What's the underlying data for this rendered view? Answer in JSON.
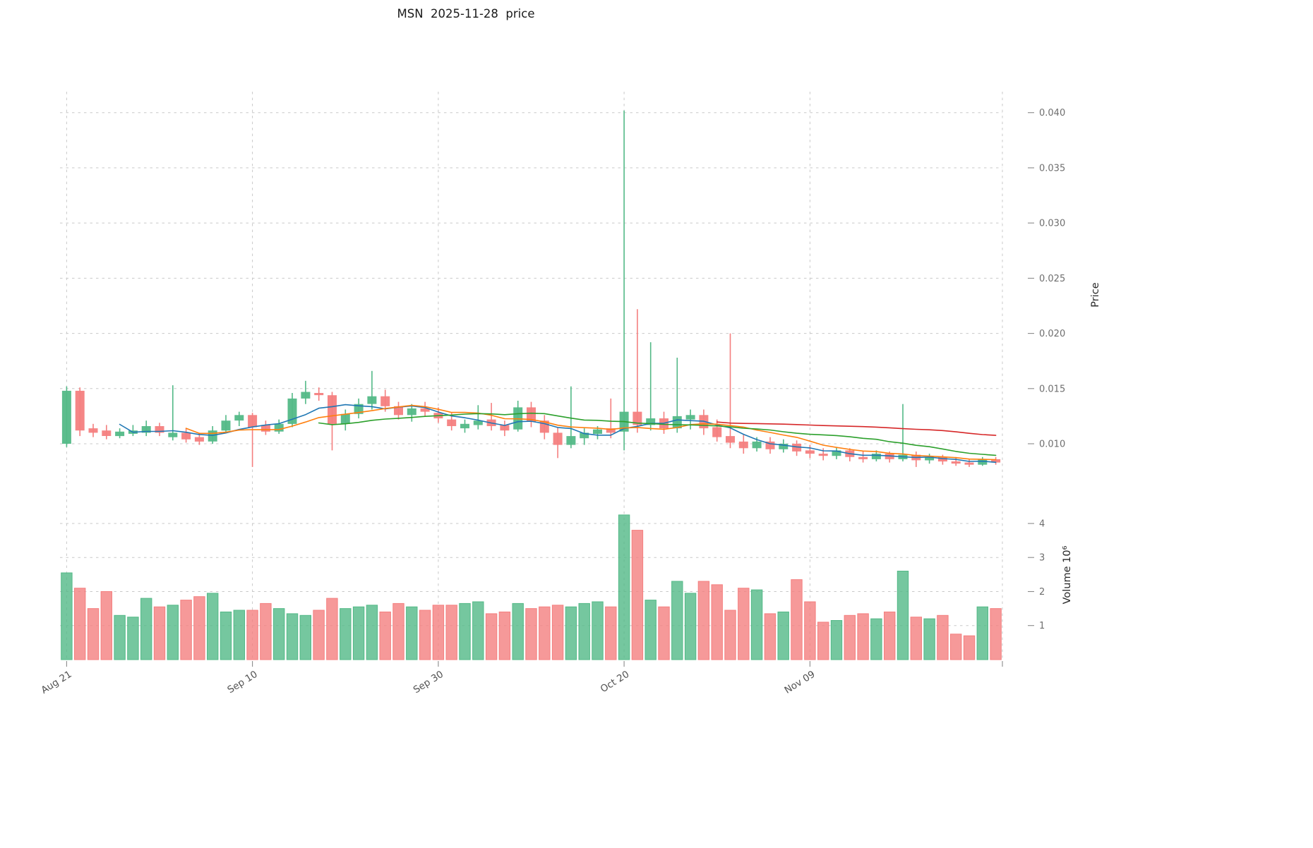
{
  "title": "MSN  2025-11-28  price",
  "chart_data": {
    "type": "candlestick+volume",
    "title": "MSN  2025-11-28  price",
    "ylabel": "Price",
    "ylabel_volume": "Volume 10⁶",
    "xlabel": "",
    "grid": "dashed",
    "legend": "none",
    "price_ticks": [
      0.01,
      0.015,
      0.02,
      0.025,
      0.03,
      0.035,
      0.04
    ],
    "volume_ticks": [
      1,
      2,
      3,
      4
    ],
    "price_ylim": [
      0.00674,
      0.0419
    ],
    "volume_ylim": [
      0,
      4.87
    ],
    "x_tick_labels": [
      "Aug 21",
      "Sep 10",
      "Sep 30",
      "Oct 20",
      "Nov 09"
    ],
    "x_tick_indices": [
      0,
      14,
      28,
      42,
      56
    ],
    "colors": {
      "up": "#53b987",
      "down": "#f47f7f",
      "grid": "#c9c9c9",
      "ma_blue": "#1f77b4",
      "ma_orange": "#ff7f0e",
      "ma_green": "#2ca02c",
      "ma_red": "#d62728"
    },
    "moving_averages": [
      {
        "name": "MA5",
        "period": 5,
        "color": "#1f77b4"
      },
      {
        "name": "MA10",
        "period": 10,
        "color": "#ff7f0e"
      },
      {
        "name": "MA20",
        "period": 20,
        "color": "#2ca02c"
      },
      {
        "name": "MA50",
        "period": 50,
        "color": "#d62728"
      }
    ],
    "candles_format": [
      "date",
      "open",
      "high",
      "low",
      "close",
      "volume_millions"
    ],
    "candles": [
      [
        "2025-08-21",
        0.01,
        0.0152,
        0.0097,
        0.0148,
        2.55
      ],
      [
        "2025-08-22",
        0.0148,
        0.0151,
        0.0107,
        0.0112,
        2.1
      ],
      [
        "2025-08-25",
        0.0114,
        0.0118,
        0.0106,
        0.011,
        1.5
      ],
      [
        "2025-08-26",
        0.0112,
        0.0117,
        0.0104,
        0.0107,
        2.0
      ],
      [
        "2025-08-27",
        0.0107,
        0.0114,
        0.0105,
        0.0111,
        1.3
      ],
      [
        "2025-08-28",
        0.0109,
        0.0117,
        0.0107,
        0.0112,
        1.25
      ],
      [
        "2025-08-29",
        0.011,
        0.0121,
        0.0107,
        0.0116,
        1.8
      ],
      [
        "2025-09-01",
        0.0116,
        0.0119,
        0.0107,
        0.011,
        1.55
      ],
      [
        "2025-09-02",
        0.0106,
        0.0153,
        0.0103,
        0.011,
        1.6
      ],
      [
        "2025-09-03",
        0.011,
        0.0114,
        0.0101,
        0.0104,
        1.75
      ],
      [
        "2025-09-04",
        0.0106,
        0.011,
        0.0099,
        0.0102,
        1.85
      ],
      [
        "2025-09-05",
        0.0102,
        0.0116,
        0.01,
        0.0112,
        1.95
      ],
      [
        "2025-09-08",
        0.0112,
        0.0126,
        0.011,
        0.0121,
        1.4
      ],
      [
        "2025-09-09",
        0.0121,
        0.0129,
        0.0116,
        0.0126,
        1.45
      ],
      [
        "2025-09-10",
        0.0126,
        0.0128,
        0.0079,
        0.0115,
        1.45
      ],
      [
        "2025-09-11",
        0.0117,
        0.0121,
        0.0108,
        0.0111,
        1.65
      ],
      [
        "2025-09-12",
        0.0111,
        0.0122,
        0.0109,
        0.0118,
        1.5
      ],
      [
        "2025-09-15",
        0.0118,
        0.0146,
        0.0115,
        0.0141,
        1.35
      ],
      [
        "2025-09-16",
        0.0141,
        0.0157,
        0.0136,
        0.0147,
        1.3
      ],
      [
        "2025-09-17",
        0.0146,
        0.0151,
        0.0139,
        0.0144,
        1.45
      ],
      [
        "2025-09-18",
        0.0144,
        0.0147,
        0.0094,
        0.0118,
        1.8
      ],
      [
        "2025-09-19",
        0.0118,
        0.0131,
        0.0112,
        0.0127,
        1.5
      ],
      [
        "2025-09-22",
        0.0127,
        0.0141,
        0.0123,
        0.0136,
        1.55
      ],
      [
        "2025-09-23",
        0.0136,
        0.0166,
        0.0131,
        0.0143,
        1.6
      ],
      [
        "2025-09-24",
        0.0143,
        0.0149,
        0.0129,
        0.0134,
        1.4
      ],
      [
        "2025-09-25",
        0.0134,
        0.0138,
        0.0122,
        0.0126,
        1.65
      ],
      [
        "2025-09-26",
        0.0126,
        0.0136,
        0.012,
        0.0132,
        1.55
      ],
      [
        "2025-09-29",
        0.0132,
        0.0138,
        0.0125,
        0.0129,
        1.45
      ],
      [
        "2025-09-30",
        0.0128,
        0.0133,
        0.0119,
        0.0123,
        1.6
      ],
      [
        "2025-10-01",
        0.0122,
        0.0128,
        0.0112,
        0.0116,
        1.6
      ],
      [
        "2025-10-02",
        0.0114,
        0.0122,
        0.011,
        0.0118,
        1.65
      ],
      [
        "2025-10-03",
        0.0117,
        0.0135,
        0.0113,
        0.0121,
        1.7
      ],
      [
        "2025-10-06",
        0.0122,
        0.0137,
        0.0112,
        0.0116,
        1.35
      ],
      [
        "2025-10-07",
        0.0117,
        0.0121,
        0.0107,
        0.0112,
        1.4
      ],
      [
        "2025-10-08",
        0.0113,
        0.0139,
        0.0111,
        0.0133,
        1.65
      ],
      [
        "2025-10-09",
        0.0133,
        0.0138,
        0.0115,
        0.012,
        1.5
      ],
      [
        "2025-10-10",
        0.0121,
        0.0126,
        0.0104,
        0.011,
        1.55
      ],
      [
        "2025-10-13",
        0.011,
        0.0115,
        0.0087,
        0.0099,
        1.6
      ],
      [
        "2025-10-14",
        0.0099,
        0.0152,
        0.0096,
        0.0107,
        1.55
      ],
      [
        "2025-10-15",
        0.0105,
        0.0114,
        0.0099,
        0.011,
        1.65
      ],
      [
        "2025-10-16",
        0.0109,
        0.0116,
        0.0104,
        0.0113,
        1.7
      ],
      [
        "2025-10-17",
        0.0114,
        0.0141,
        0.0105,
        0.011,
        1.55
      ],
      [
        "2025-10-20",
        0.0111,
        0.0402,
        0.0094,
        0.0129,
        4.25
      ],
      [
        "2025-10-21",
        0.0129,
        0.0222,
        0.011,
        0.0117,
        3.8
      ],
      [
        "2025-10-22",
        0.0117,
        0.0192,
        0.0112,
        0.0123,
        1.75
      ],
      [
        "2025-10-23",
        0.0123,
        0.0129,
        0.0109,
        0.0114,
        1.55
      ],
      [
        "2025-10-24",
        0.0114,
        0.0178,
        0.011,
        0.0125,
        2.3
      ],
      [
        "2025-10-27",
        0.0122,
        0.0131,
        0.0113,
        0.0126,
        1.95
      ],
      [
        "2025-10-28",
        0.0126,
        0.0131,
        0.0108,
        0.0114,
        2.3
      ],
      [
        "2025-10-29",
        0.0115,
        0.0122,
        0.0102,
        0.0106,
        2.2
      ],
      [
        "2025-10-30",
        0.0107,
        0.02,
        0.0096,
        0.0101,
        1.45
      ],
      [
        "2025-10-31",
        0.0102,
        0.0108,
        0.0091,
        0.0096,
        2.1
      ],
      [
        "2025-11-03",
        0.0096,
        0.0106,
        0.0093,
        0.0102,
        2.05
      ],
      [
        "2025-11-04",
        0.0102,
        0.0106,
        0.0091,
        0.0095,
        1.35
      ],
      [
        "2025-11-05",
        0.0095,
        0.0104,
        0.0092,
        0.01,
        1.4
      ],
      [
        "2025-11-06",
        0.01,
        0.0103,
        0.0089,
        0.0093,
        2.35
      ],
      [
        "2025-11-07",
        0.0094,
        0.0099,
        0.0087,
        0.0091,
        1.7
      ],
      [
        "2025-11-10",
        0.0091,
        0.0096,
        0.0085,
        0.0089,
        1.1
      ],
      [
        "2025-11-11",
        0.0089,
        0.0097,
        0.0086,
        0.0094,
        1.15
      ],
      [
        "2025-11-12",
        0.0094,
        0.0096,
        0.0084,
        0.0088,
        1.3
      ],
      [
        "2025-11-13",
        0.0088,
        0.0093,
        0.0083,
        0.0086,
        1.35
      ],
      [
        "2025-11-14",
        0.0086,
        0.0094,
        0.0084,
        0.0091,
        1.2
      ],
      [
        "2025-11-17",
        0.0091,
        0.0093,
        0.0083,
        0.0086,
        1.4
      ],
      [
        "2025-11-18",
        0.0086,
        0.0136,
        0.0084,
        0.009,
        2.6
      ],
      [
        "2025-11-19",
        0.009,
        0.0093,
        0.0079,
        0.0085,
        1.25
      ],
      [
        "2025-11-20",
        0.0085,
        0.0091,
        0.0082,
        0.0088,
        1.2
      ],
      [
        "2025-11-21",
        0.0088,
        0.009,
        0.0081,
        0.0084,
        1.3
      ],
      [
        "2025-11-24",
        0.0084,
        0.0088,
        0.008,
        0.0082,
        0.75
      ],
      [
        "2025-11-25",
        0.0083,
        0.0086,
        0.0079,
        0.0081,
        0.7
      ],
      [
        "2025-11-26",
        0.0081,
        0.0088,
        0.008,
        0.0086,
        1.55
      ],
      [
        "2025-11-28",
        0.0086,
        0.0088,
        0.0081,
        0.0083,
        1.5
      ]
    ]
  }
}
